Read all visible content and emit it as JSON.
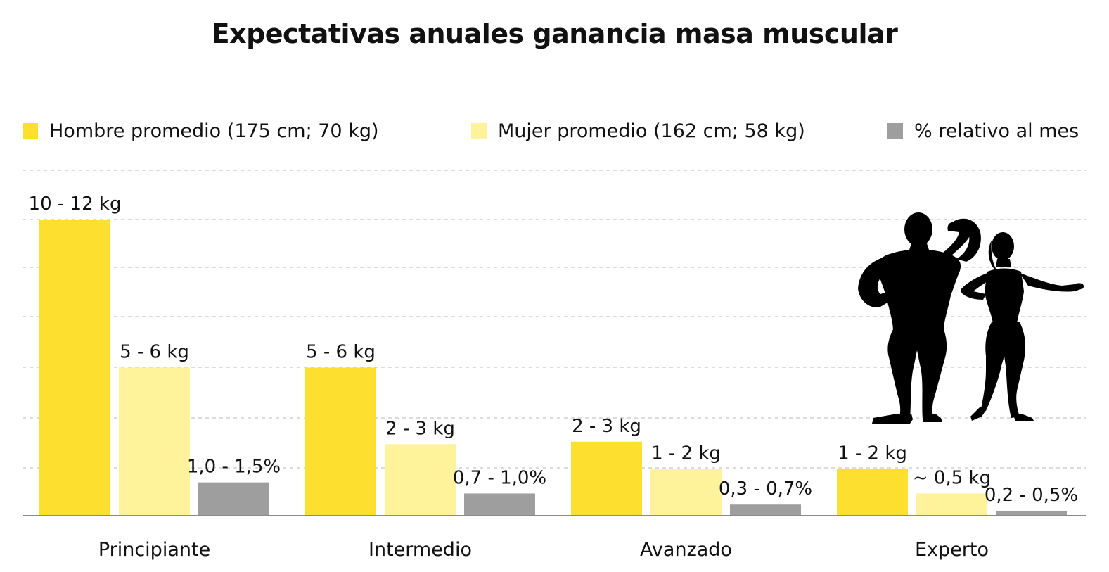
{
  "chart_data": {
    "type": "bar",
    "title": "Expectativas anuales ganancia masa muscular",
    "xlabel": "",
    "ylabel": "",
    "categories": [
      "Principiante",
      "Intermedio",
      "Avanzado",
      "Experto"
    ],
    "grid": true,
    "legend_position": "top",
    "ylim": [
      0,
      12
    ],
    "series": [
      {
        "name": "Hombre promedio (175 cm; 70 kg)",
        "color": "#FDE02F",
        "values": [
          12,
          6,
          3,
          1.9
        ],
        "labels": [
          "10 - 12 kg",
          "5 - 6 kg",
          "2 - 3 kg",
          "1 - 2 kg"
        ]
      },
      {
        "name": "Mujer promedio (162 cm; 58 kg)",
        "color": "#FEF29B",
        "values": [
          6,
          2.9,
          1.9,
          0.9
        ],
        "labels": [
          "5 - 6 kg",
          "2 - 3 kg",
          "1 - 2 kg",
          "~ 0,5 kg"
        ]
      },
      {
        "name": "% relativo al mes",
        "color": "#9E9E9E",
        "values": [
          1.35,
          0.9,
          0.45,
          0.2
        ],
        "labels": [
          "1,0 - 1,5%",
          "0,7 - 1,0%",
          "0,3 - 0,7%",
          "0,2 - 0,5%"
        ]
      }
    ]
  },
  "decoration": {
    "icon": "bodybuilders-silhouette-icon",
    "color": "#000000"
  }
}
